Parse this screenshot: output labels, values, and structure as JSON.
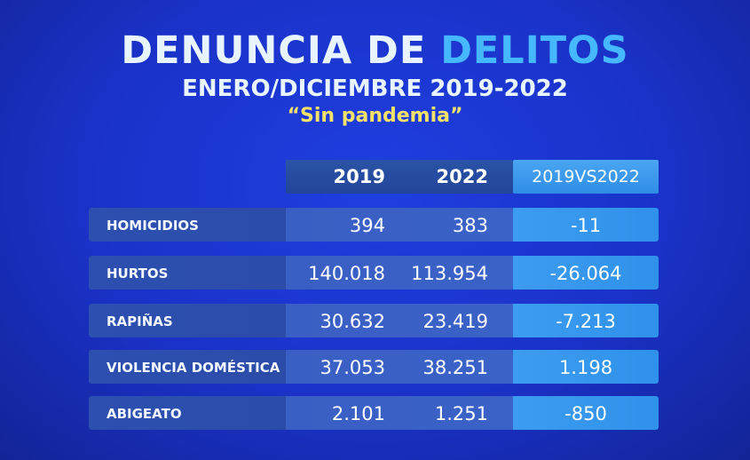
{
  "title": {
    "part1": "DENUNCIA DE ",
    "part2": "DELITOS"
  },
  "subtitle": "ENERO/DICIEMBRE 2019-2022",
  "tagline": "“Sin pandemia”",
  "table": {
    "headers": {
      "y2019": "2019",
      "y2022": "2022",
      "diff": "2019VS2022"
    },
    "rows": [
      {
        "label": "HOMICIDIOS",
        "y2019": "394",
        "y2022": "383",
        "diff": "-11"
      },
      {
        "label": "HURTOS",
        "y2019": "140.018",
        "y2022": "113.954",
        "diff": "-26.064"
      },
      {
        "label": "RAPIÑAS",
        "y2019": "30.632",
        "y2022": "23.419",
        "diff": "-7.213"
      },
      {
        "label": "VIOLENCIA DOMÉSTICA",
        "y2019": "37.053",
        "y2022": "38.251",
        "diff": "1.198"
      },
      {
        "label": "ABIGEATO",
        "y2019": "2.101",
        "y2022": "1.251",
        "diff": "-850"
      }
    ]
  },
  "colors": {
    "background": "#1a32c8",
    "title_text": "#e8f4ff",
    "title_accent": "#46b8ff",
    "tagline": "#f3e26a",
    "diff_column": "#3c9cf0"
  }
}
